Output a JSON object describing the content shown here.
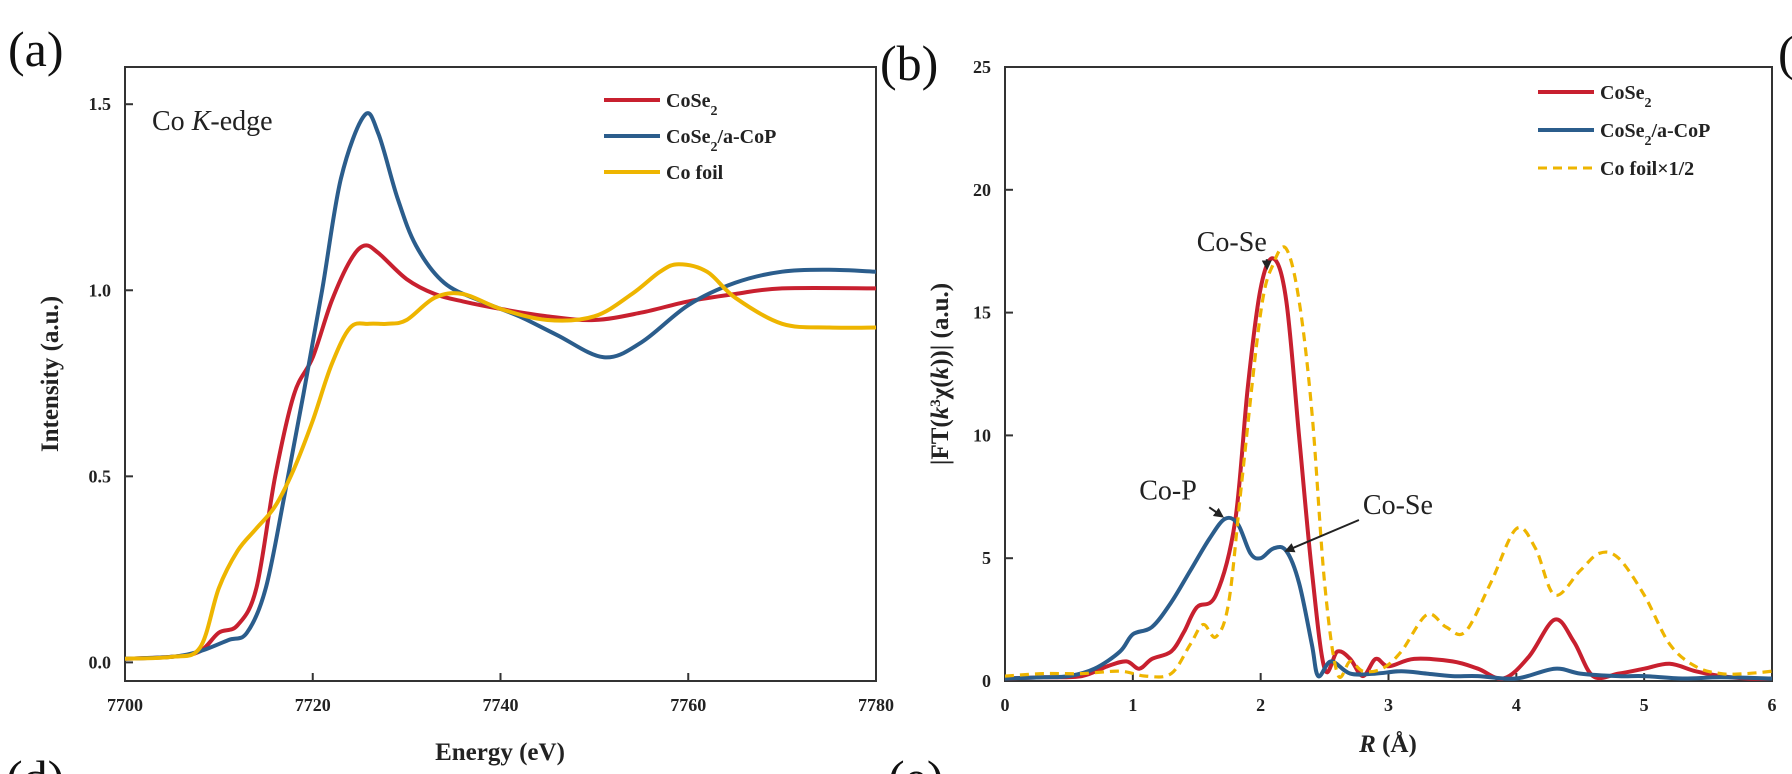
{
  "panel_labels": {
    "a": "(a)",
    "b": "(b)",
    "c_partial": "(",
    "d": "(d)",
    "e": "(e)"
  },
  "colors": {
    "CoSe2": "#c8202f",
    "CoSe2_aCoP": "#2b5d8c",
    "Co_foil": "#eeb500"
  },
  "chart_data": [
    {
      "type": "line",
      "panel": "(a)",
      "title": "",
      "annotation_pre": "Co ",
      "annotation_italic": "K",
      "annotation_post": "-edge",
      "xlabel": "Energy (eV)",
      "ylabel": "Intensity (a.u.)",
      "xlim": [
        7700,
        7780
      ],
      "ylim": [
        -0.05,
        1.6
      ],
      "xticks": [
        7700,
        7720,
        7740,
        7760,
        7780
      ],
      "xtick_labels": [
        "7700",
        "7720",
        "7740",
        "7760",
        "7780"
      ],
      "yticks": [
        0.0,
        0.5,
        1.0,
        1.5
      ],
      "ytick_labels": [
        "0.0",
        "0.5",
        "1.0",
        "1.5"
      ],
      "legend_position": "top-right",
      "series": [
        {
          "name": "CoSe2",
          "label_main": "CoSe",
          "label_sub": "2",
          "label_tail": "",
          "color": "#c8202f",
          "style": "solid",
          "points": [
            [
              7700,
              0.01
            ],
            [
              7705,
              0.015
            ],
            [
              7708,
              0.03
            ],
            [
              7710,
              0.08
            ],
            [
              7712,
              0.1
            ],
            [
              7714,
              0.2
            ],
            [
              7716,
              0.5
            ],
            [
              7718,
              0.72
            ],
            [
              7720,
              0.82
            ],
            [
              7722,
              0.97
            ],
            [
              7724,
              1.08
            ],
            [
              7725.5,
              1.12
            ],
            [
              7727,
              1.1
            ],
            [
              7730,
              1.03
            ],
            [
              7733,
              0.99
            ],
            [
              7736,
              0.97
            ],
            [
              7740,
              0.95
            ],
            [
              7745,
              0.93
            ],
            [
              7750,
              0.92
            ],
            [
              7755,
              0.94
            ],
            [
              7760,
              0.97
            ],
            [
              7765,
              0.99
            ],
            [
              7770,
              1.005
            ],
            [
              7780,
              1.005
            ]
          ]
        },
        {
          "name": "CoSe2/a-CoP",
          "label_main": "CoSe",
          "label_sub": "2",
          "label_tail": "/a-CoP",
          "color": "#2b5d8c",
          "style": "solid",
          "points": [
            [
              7700,
              0.01
            ],
            [
              7705,
              0.015
            ],
            [
              7708,
              0.03
            ],
            [
              7711,
              0.06
            ],
            [
              7713,
              0.08
            ],
            [
              7715,
              0.2
            ],
            [
              7717,
              0.45
            ],
            [
              7719,
              0.72
            ],
            [
              7721,
              1.0
            ],
            [
              7723,
              1.3
            ],
            [
              7725.5,
              1.47
            ],
            [
              7727,
              1.42
            ],
            [
              7729,
              1.25
            ],
            [
              7731,
              1.12
            ],
            [
              7734,
              1.02
            ],
            [
              7738,
              0.97
            ],
            [
              7742,
              0.93
            ],
            [
              7746,
              0.88
            ],
            [
              7751,
              0.82
            ],
            [
              7755,
              0.86
            ],
            [
              7760,
              0.96
            ],
            [
              7765,
              1.02
            ],
            [
              7770,
              1.05
            ],
            [
              7775,
              1.055
            ],
            [
              7780,
              1.05
            ]
          ]
        },
        {
          "name": "Co foil",
          "label_main": "Co foil",
          "label_sub": "",
          "label_tail": "",
          "color": "#eeb500",
          "style": "solid",
          "points": [
            [
              7700,
              0.01
            ],
            [
              7705,
              0.015
            ],
            [
              7708,
              0.04
            ],
            [
              7710,
              0.2
            ],
            [
              7712,
              0.3
            ],
            [
              7714,
              0.36
            ],
            [
              7716,
              0.42
            ],
            [
              7718,
              0.52
            ],
            [
              7720,
              0.65
            ],
            [
              7722,
              0.8
            ],
            [
              7724,
              0.9
            ],
            [
              7726,
              0.91
            ],
            [
              7728,
              0.91
            ],
            [
              7730,
              0.92
            ],
            [
              7733,
              0.98
            ],
            [
              7736,
              0.99
            ],
            [
              7740,
              0.95
            ],
            [
              7745,
              0.92
            ],
            [
              7750,
              0.93
            ],
            [
              7754,
              0.99
            ],
            [
              7757,
              1.05
            ],
            [
              7759,
              1.07
            ],
            [
              7762,
              1.05
            ],
            [
              7765,
              0.98
            ],
            [
              7770,
              0.91
            ],
            [
              7775,
              0.9
            ],
            [
              7780,
              0.9
            ]
          ]
        }
      ]
    },
    {
      "type": "line",
      "panel": "(b)",
      "title": "",
      "xlabel_italic": "R",
      "xlabel_rest": " (Å)",
      "ylabel_pre": "|FT(",
      "ylabel_k": "k",
      "ylabel_sup": "3",
      "ylabel_chi": "χ(",
      "ylabel_k2": "k",
      "ylabel_post": "))| (a.u.)",
      "xlim": [
        0,
        6
      ],
      "ylim": [
        0,
        25
      ],
      "xticks": [
        0,
        1,
        2,
        3,
        4,
        5,
        6
      ],
      "xtick_labels": [
        "0",
        "1",
        "2",
        "3",
        "4",
        "5",
        "6"
      ],
      "yticks": [
        0,
        5,
        10,
        15,
        20,
        25
      ],
      "ytick_labels": [
        "0",
        "5",
        "10",
        "15",
        "20",
        "25"
      ],
      "legend_position": "top-right",
      "annotations": [
        {
          "text": "Co-Se",
          "x": 1.5,
          "y": 17.5,
          "arrow_to": [
            2.05,
            16.8
          ]
        },
        {
          "text": "Co-P",
          "x": 1.05,
          "y": 7.4,
          "arrow_to": [
            1.7,
            6.7
          ]
        },
        {
          "text": "Co-Se",
          "x": 2.8,
          "y": 6.8,
          "arrow_to": [
            2.2,
            5.3
          ]
        }
      ],
      "series": [
        {
          "name": "CoSe2",
          "label_main": "CoSe",
          "label_sub": "2",
          "label_tail": "",
          "color": "#c8202f",
          "style": "solid",
          "points": [
            [
              0,
              0.1
            ],
            [
              0.3,
              0.15
            ],
            [
              0.6,
              0.2
            ],
            [
              0.8,
              0.6
            ],
            [
              0.95,
              0.8
            ],
            [
              1.05,
              0.5
            ],
            [
              1.15,
              0.9
            ],
            [
              1.3,
              1.2
            ],
            [
              1.4,
              2.0
            ],
            [
              1.5,
              3.0
            ],
            [
              1.65,
              3.5
            ],
            [
              1.8,
              6.5
            ],
            [
              1.9,
              12.0
            ],
            [
              2.0,
              16.0
            ],
            [
              2.1,
              17.2
            ],
            [
              2.2,
              15.5
            ],
            [
              2.3,
              10.0
            ],
            [
              2.4,
              4.5
            ],
            [
              2.5,
              0.5
            ],
            [
              2.6,
              1.2
            ],
            [
              2.7,
              0.9
            ],
            [
              2.8,
              0.2
            ],
            [
              2.9,
              0.9
            ],
            [
              3.0,
              0.6
            ],
            [
              3.2,
              0.9
            ],
            [
              3.5,
              0.8
            ],
            [
              3.7,
              0.5
            ],
            [
              3.9,
              0.1
            ],
            [
              4.1,
              1.0
            ],
            [
              4.3,
              2.5
            ],
            [
              4.45,
              1.6
            ],
            [
              4.6,
              0.2
            ],
            [
              4.8,
              0.3
            ],
            [
              5.0,
              0.5
            ],
            [
              5.2,
              0.7
            ],
            [
              5.4,
              0.4
            ],
            [
              5.6,
              0.2
            ],
            [
              5.8,
              0.1
            ],
            [
              6.0,
              0.1
            ]
          ]
        },
        {
          "name": "CoSe2/a-CoP",
          "label_main": "CoSe",
          "label_sub": "2",
          "label_tail": "/a-CoP",
          "color": "#2b5d8c",
          "style": "solid",
          "points": [
            [
              0,
              0.1
            ],
            [
              0.3,
              0.15
            ],
            [
              0.5,
              0.2
            ],
            [
              0.7,
              0.5
            ],
            [
              0.9,
              1.2
            ],
            [
              1.0,
              1.9
            ],
            [
              1.15,
              2.2
            ],
            [
              1.3,
              3.2
            ],
            [
              1.45,
              4.5
            ],
            [
              1.6,
              5.8
            ],
            [
              1.72,
              6.6
            ],
            [
              1.82,
              6.4
            ],
            [
              1.92,
              5.2
            ],
            [
              2.0,
              5.0
            ],
            [
              2.1,
              5.4
            ],
            [
              2.2,
              5.3
            ],
            [
              2.3,
              4.0
            ],
            [
              2.4,
              1.5
            ],
            [
              2.45,
              0.2
            ],
            [
              2.55,
              0.8
            ],
            [
              2.7,
              0.3
            ],
            [
              2.9,
              0.3
            ],
            [
              3.1,
              0.4
            ],
            [
              3.3,
              0.3
            ],
            [
              3.5,
              0.2
            ],
            [
              3.7,
              0.2
            ],
            [
              4.0,
              0.1
            ],
            [
              4.3,
              0.5
            ],
            [
              4.5,
              0.3
            ],
            [
              4.8,
              0.2
            ],
            [
              5.0,
              0.2
            ],
            [
              5.3,
              0.1
            ],
            [
              5.6,
              0.15
            ],
            [
              6.0,
              0.1
            ]
          ]
        },
        {
          "name": "Co foil×1/2",
          "label_main": "Co foil×1/2",
          "label_sub": "",
          "label_tail": "",
          "color": "#eeb500",
          "style": "dashed",
          "points": [
            [
              0,
              0.2
            ],
            [
              0.3,
              0.3
            ],
            [
              0.6,
              0.3
            ],
            [
              0.9,
              0.4
            ],
            [
              1.1,
              0.2
            ],
            [
              1.3,
              0.3
            ],
            [
              1.45,
              1.5
            ],
            [
              1.55,
              2.3
            ],
            [
              1.65,
              1.8
            ],
            [
              1.75,
              3.2
            ],
            [
              1.85,
              8.0
            ],
            [
              2.0,
              15.0
            ],
            [
              2.1,
              17.0
            ],
            [
              2.2,
              17.6
            ],
            [
              2.3,
              15.5
            ],
            [
              2.4,
              11.0
            ],
            [
              2.5,
              4.0
            ],
            [
              2.6,
              0.3
            ],
            [
              2.7,
              0.8
            ],
            [
              2.8,
              0.4
            ],
            [
              2.95,
              0.5
            ],
            [
              3.1,
              1.2
            ],
            [
              3.3,
              2.7
            ],
            [
              3.45,
              2.2
            ],
            [
              3.6,
              2.0
            ],
            [
              3.8,
              4.0
            ],
            [
              4.0,
              6.2
            ],
            [
              4.15,
              5.4
            ],
            [
              4.3,
              3.5
            ],
            [
              4.5,
              4.5
            ],
            [
              4.65,
              5.2
            ],
            [
              4.8,
              5.0
            ],
            [
              5.0,
              3.5
            ],
            [
              5.2,
              1.5
            ],
            [
              5.4,
              0.6
            ],
            [
              5.6,
              0.3
            ],
            [
              5.8,
              0.3
            ],
            [
              6.0,
              0.4
            ]
          ]
        }
      ]
    }
  ]
}
